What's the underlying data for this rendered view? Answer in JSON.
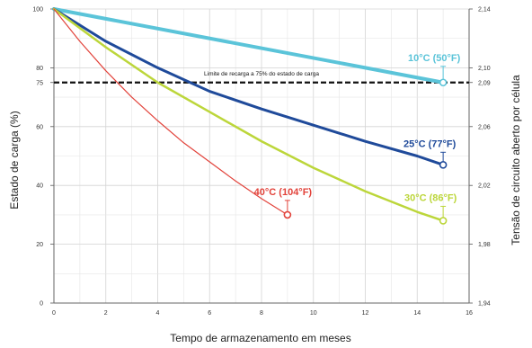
{
  "chart_data": {
    "type": "line",
    "xlabel": "Tempo de armazenamento em meses",
    "ylabel": "Estado de carga (%)",
    "y2label": "Tensão de circuito aberto por célula",
    "xlim": [
      0,
      16
    ],
    "ylim": [
      0,
      100
    ],
    "y2lim": [
      1.94,
      2.14
    ],
    "x_ticks": [
      0,
      2,
      4,
      6,
      8,
      10,
      12,
      14,
      16
    ],
    "y_ticks": [
      0,
      20,
      40,
      60,
      75,
      80,
      100
    ],
    "y2_ticks": [
      "1,94",
      "1,98",
      "2,02",
      "2,06",
      "2,09",
      "2,10",
      "2,14"
    ],
    "grid": true,
    "reference_line": {
      "y": 75,
      "label": "Limite de recarga a 75% do estado de carga",
      "style": "dashed",
      "color": "#111111"
    },
    "series": [
      {
        "name": "10°C (50°F)",
        "color": "#5bc4d9",
        "x": [
          0,
          15
        ],
        "y": [
          100,
          75
        ]
      },
      {
        "name": "25°C (77°F)",
        "color": "#1f4a9a",
        "x": [
          0,
          2,
          4,
          6,
          8,
          10,
          12,
          14,
          15
        ],
        "y": [
          100,
          89,
          80,
          72,
          66,
          60.5,
          55,
          50,
          47
        ]
      },
      {
        "name": "30°C (86°F)",
        "color": "#bcd63a",
        "x": [
          0,
          2,
          4,
          6,
          8,
          10,
          12,
          14,
          15
        ],
        "y": [
          100,
          87,
          75,
          65,
          55,
          46,
          38,
          31,
          28
        ]
      },
      {
        "name": "40°C (104°F)",
        "color": "#e2433b",
        "x": [
          0,
          1,
          2,
          3,
          4,
          5,
          6,
          7,
          8,
          9
        ],
        "y": [
          100,
          89,
          79,
          70,
          62,
          54.5,
          48,
          41.5,
          35.5,
          30
        ]
      }
    ]
  }
}
